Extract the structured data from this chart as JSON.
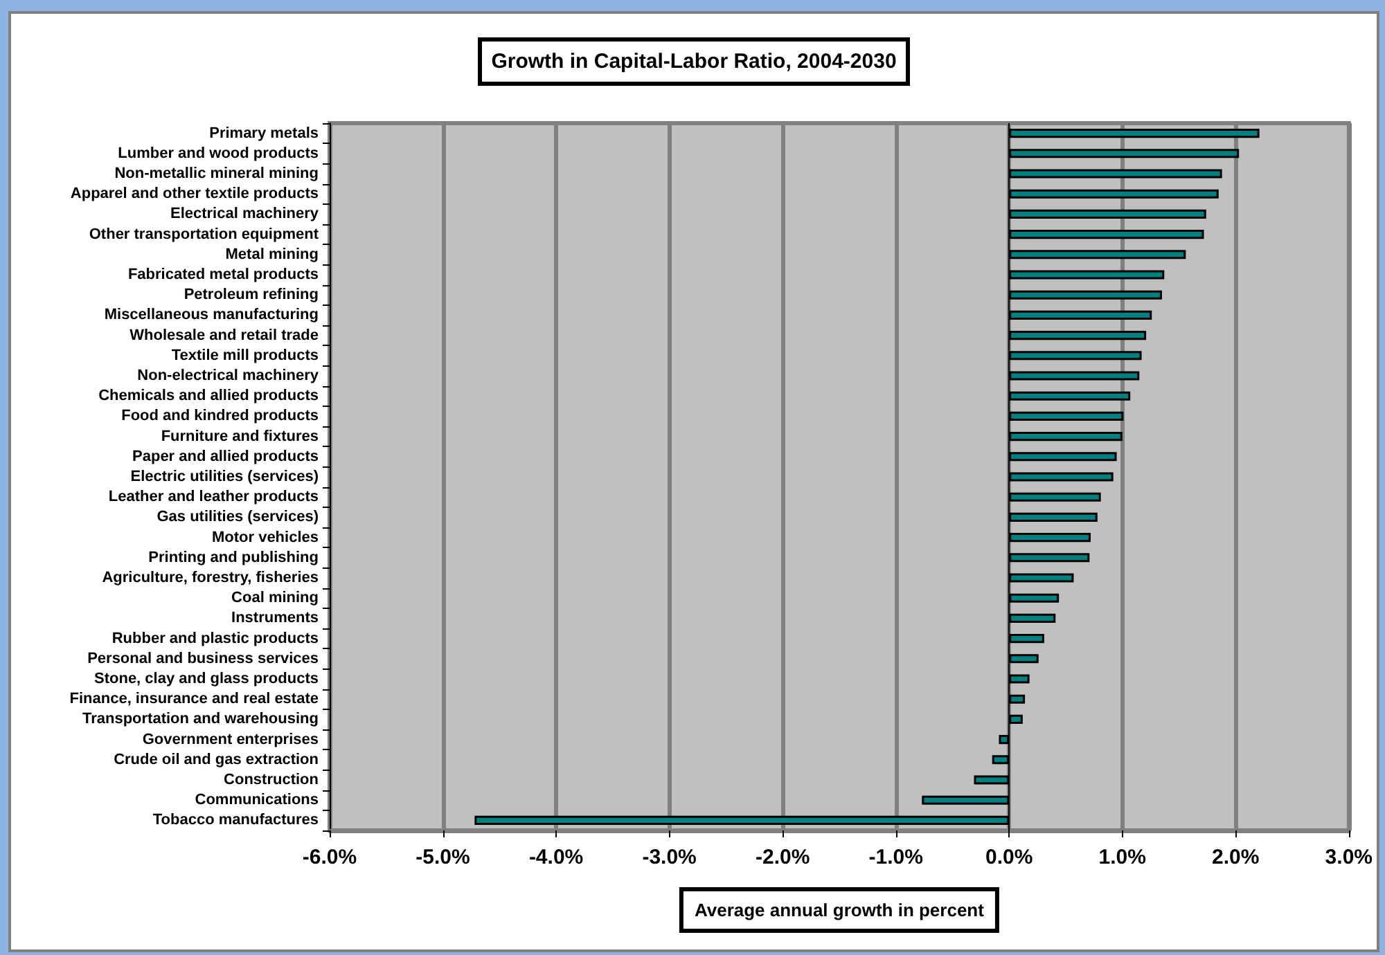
{
  "chart_data": {
    "type": "bar",
    "orientation": "horizontal",
    "title": "Growth in Capital-Labor Ratio, 2004-2030",
    "xlabel": "Average annual growth in percent",
    "categories": [
      "Primary metals",
      "Lumber and wood products",
      "Non-metallic mineral mining",
      "Apparel and other textile products",
      "Electrical machinery",
      "Other transportation equipment",
      "Metal mining",
      "Fabricated metal products",
      "Petroleum refining",
      "Miscellaneous manufacturing",
      "Wholesale and retail trade",
      "Textile mill products",
      "Non-electrical machinery",
      "Chemicals and allied products",
      "Food and kindred products",
      "Furniture and fixtures",
      "Paper and allied products",
      "Electric utilities (services)",
      "Leather and leather products",
      "Gas utilities (services)",
      "Motor vehicles",
      "Printing and publishing",
      "Agriculture, forestry, fisheries",
      "Coal mining",
      "Instruments",
      "Rubber and plastic products",
      "Personal and business services",
      "Stone, clay and glass products",
      "Finance, insurance and real estate",
      "Transportation and warehousing",
      "Government enterprises",
      "Crude oil and gas extraction",
      "Construction",
      "Communications",
      "Tobacco manufactures"
    ],
    "values": [
      2.21,
      2.03,
      1.88,
      1.85,
      1.74,
      1.72,
      1.56,
      1.37,
      1.35,
      1.26,
      1.21,
      1.17,
      1.15,
      1.07,
      1.01,
      1.0,
      0.95,
      0.92,
      0.81,
      0.78,
      0.72,
      0.71,
      0.57,
      0.44,
      0.41,
      0.31,
      0.26,
      0.18,
      0.14,
      0.12,
      -0.09,
      -0.15,
      -0.31,
      -0.77,
      -4.72
    ],
    "color": "#008080",
    "xlim": [
      -6,
      3
    ],
    "xticks": [
      {
        "value": -6,
        "label": "-6.0%"
      },
      {
        "value": -5,
        "label": "-5.0%"
      },
      {
        "value": -4,
        "label": "-4.0%"
      },
      {
        "value": -3,
        "label": "-3.0%"
      },
      {
        "value": -2,
        "label": "-2.0%"
      },
      {
        "value": -1,
        "label": "-1.0%"
      },
      {
        "value": 0,
        "label": "0.0%"
      },
      {
        "value": 1,
        "label": "1.0%"
      },
      {
        "value": 2,
        "label": "2.0%"
      },
      {
        "value": 3,
        "label": "3.0%"
      }
    ],
    "grid": "x"
  }
}
